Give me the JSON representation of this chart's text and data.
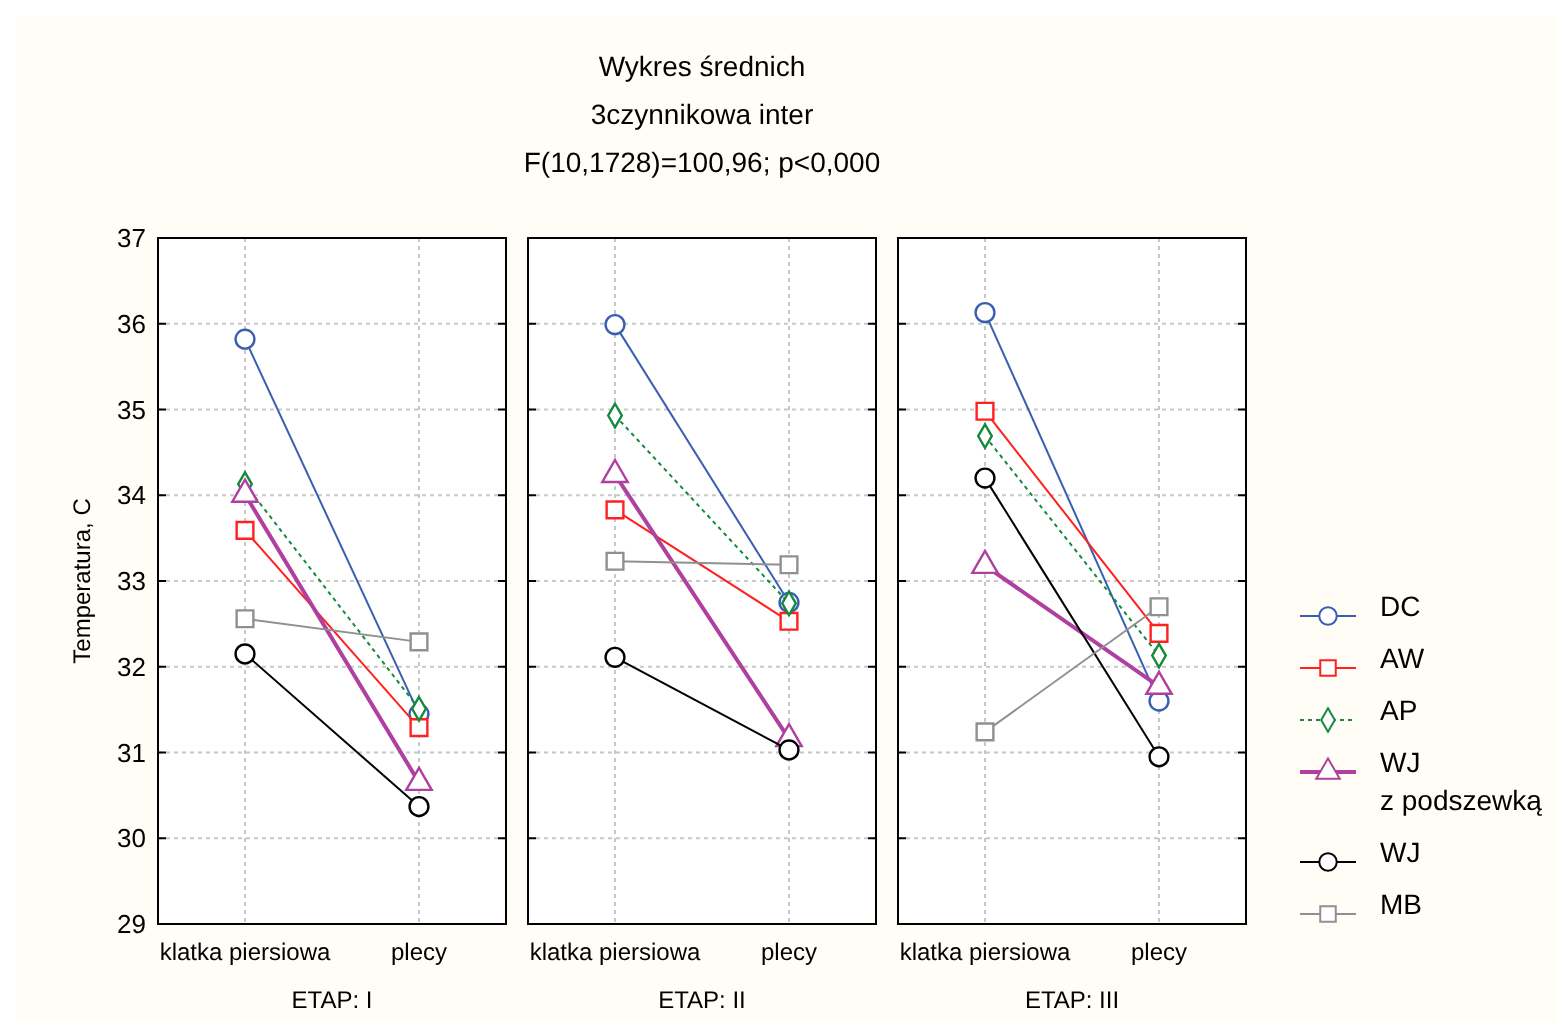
{
  "chart_data": [
    {
      "type": "line",
      "ylabel": "Temperatura, C",
      "xlabel": "ETAP: I",
      "categories": [
        "klatka piersiowa",
        "plecy"
      ],
      "ylim": [
        29,
        37
      ],
      "yticks": [
        29,
        30,
        31,
        32,
        33,
        34,
        35,
        36,
        37
      ],
      "grid": true,
      "legend": false,
      "series": [
        {
          "color": "#3a5fb0",
          "marker": "circle",
          "line_style": "solid",
          "values": [
            35.82,
            31.45
          ]
        },
        {
          "color": "#ff2020",
          "marker": "square",
          "line_style": "solid",
          "values": [
            33.59,
            31.29
          ]
        },
        {
          "color": "#138a3c",
          "marker": "diamond",
          "line_style": "dotted",
          "values": [
            34.13,
            31.51
          ]
        },
        {
          "color": "#b040a0",
          "marker": "triangle",
          "line_style": "solid",
          "values": [
            34.01,
            30.65
          ]
        },
        {
          "color": "#000000",
          "marker": "circle",
          "line_style": "solid",
          "values": [
            32.15,
            30.37
          ]
        },
        {
          "color": "#909090",
          "marker": "square",
          "line_style": "solid",
          "values": [
            32.56,
            32.29
          ]
        }
      ]
    },
    {
      "type": "line",
      "title": "Wykres średnich\n3czynnikowa inter\nF(10,1728)=100,96; p<0,000",
      "xlabel": "ETAP: II",
      "categories": [
        "klatka piersiowa",
        "plecy"
      ],
      "ylim": [
        29,
        37
      ],
      "yticks": [
        29,
        30,
        31,
        32,
        33,
        34,
        35,
        36,
        37
      ],
      "grid": true,
      "legend": false,
      "tick_labels": "x",
      "series": [
        {
          "color": "#3a5fb0",
          "marker": "circle",
          "line_style": "solid",
          "values": [
            35.99,
            32.75
          ]
        },
        {
          "color": "#ff2020",
          "marker": "square",
          "line_style": "solid",
          "values": [
            33.83,
            32.53
          ]
        },
        {
          "color": "#138a3c",
          "marker": "diamond",
          "line_style": "dotted",
          "values": [
            34.93,
            32.74
          ]
        },
        {
          "color": "#b040a0",
          "marker": "triangle",
          "line_style": "solid",
          "values": [
            34.24,
            31.16
          ]
        },
        {
          "color": "#000000",
          "marker": "circle",
          "line_style": "solid",
          "values": [
            32.11,
            31.03
          ]
        },
        {
          "color": "#909090",
          "marker": "square",
          "line_style": "solid",
          "values": [
            33.23,
            33.19
          ]
        }
      ]
    },
    {
      "type": "line",
      "xlabel": "ETAP: III",
      "categories": [
        "klatka piersiowa",
        "plecy"
      ],
      "ylim": [
        29,
        37
      ],
      "yticks": [
        29,
        30,
        31,
        32,
        33,
        34,
        35,
        36,
        37
      ],
      "grid": true,
      "legend": "right",
      "tick_labels": "x",
      "series": [
        {
          "name": "DC",
          "color": "#3a5fb0",
          "marker": "circle",
          "line_style": "solid",
          "values": [
            36.13,
            31.6
          ]
        },
        {
          "name": "AW",
          "color": "#ff2020",
          "marker": "square",
          "line_style": "solid",
          "values": [
            34.98,
            32.39
          ]
        },
        {
          "name": "AP",
          "color": "#138a3c",
          "marker": "diamond",
          "line_style": "dotted",
          "values": [
            34.69,
            32.13
          ]
        },
        {
          "name": "WJ\nz podszewką",
          "color": "#b040a0",
          "marker": "triangle",
          "line_style": "solid",
          "values": [
            33.18,
            31.77
          ]
        },
        {
          "name": "WJ",
          "color": "#000000",
          "marker": "circle",
          "line_style": "solid",
          "values": [
            34.2,
            30.95
          ]
        },
        {
          "name": "MB",
          "color": "#909090",
          "marker": "square",
          "line_style": "solid",
          "values": [
            31.24,
            32.7
          ]
        }
      ]
    }
  ]
}
